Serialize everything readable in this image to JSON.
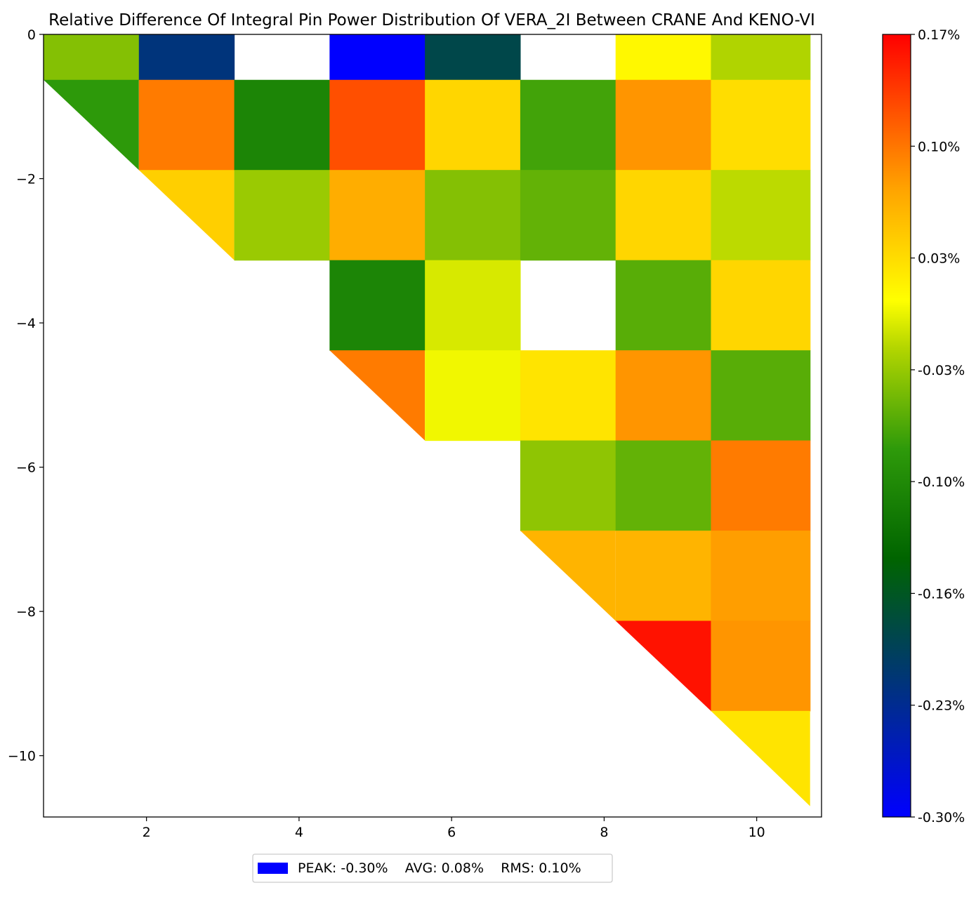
{
  "chart_data": {
    "type": "heatmap",
    "title": "Relative Difference Of Integral Pin Power Distribution Of VERA_2I Between CRANE And KENO-VI",
    "xlabel": "",
    "ylabel": "",
    "xlim": [
      0.65,
      10.85
    ],
    "ylim": [
      -10.85,
      0.0
    ],
    "x_ticks": [
      2,
      4,
      6,
      8,
      10
    ],
    "y_ticks": [
      0,
      -2,
      -4,
      -6,
      -8,
      -10
    ],
    "x_tick_labels": [
      "2",
      "4",
      "6",
      "8",
      "10"
    ],
    "y_tick_labels": [
      "0",
      "−2",
      "−4",
      "−6",
      "−8",
      "−10"
    ],
    "grid": false,
    "column_edges": [
      0.65,
      1.9,
      3.15,
      4.4,
      5.65,
      6.9,
      8.15,
      9.4,
      10.7
    ],
    "row_edges": [
      0.0,
      -0.63,
      -1.88,
      -3.13,
      -4.38,
      -5.63,
      -6.88,
      -8.13,
      -9.38,
      -10.7
    ],
    "cells": [
      {
        "row": 0,
        "col": 1,
        "value": -0.04
      },
      {
        "row": 0,
        "col": 2,
        "value": -0.22
      },
      {
        "row": 0,
        "col": 3,
        "value": null
      },
      {
        "row": 0,
        "col": 4,
        "value": -0.3
      },
      {
        "row": 0,
        "col": 5,
        "value": -0.19
      },
      {
        "row": 0,
        "col": 6,
        "value": null
      },
      {
        "row": 0,
        "col": 7,
        "value": 0.015
      },
      {
        "row": 0,
        "col": 8,
        "value": -0.02
      },
      {
        "row": 1,
        "col": 1,
        "value": -0.08,
        "shape": "tri"
      },
      {
        "row": 1,
        "col": 2,
        "value": 0.1
      },
      {
        "row": 1,
        "col": 3,
        "value": -0.105
      },
      {
        "row": 1,
        "col": 4,
        "value": 0.125
      },
      {
        "row": 1,
        "col": 5,
        "value": 0.04
      },
      {
        "row": 1,
        "col": 6,
        "value": -0.07
      },
      {
        "row": 1,
        "col": 7,
        "value": 0.085
      },
      {
        "row": 1,
        "col": 8,
        "value": 0.035
      },
      {
        "row": 2,
        "col": 2,
        "value": 0.045,
        "shape": "tri"
      },
      {
        "row": 2,
        "col": 3,
        "value": -0.03
      },
      {
        "row": 2,
        "col": 4,
        "value": 0.07
      },
      {
        "row": 2,
        "col": 5,
        "value": -0.04
      },
      {
        "row": 2,
        "col": 6,
        "value": -0.055
      },
      {
        "row": 2,
        "col": 7,
        "value": 0.04
      },
      {
        "row": 2,
        "col": 8,
        "value": -0.015
      },
      {
        "row": 3,
        "col": 4,
        "value": -0.105
      },
      {
        "row": 3,
        "col": 5,
        "value": -0.005
      },
      {
        "row": 3,
        "col": 6,
        "value": null
      },
      {
        "row": 3,
        "col": 7,
        "value": -0.06
      },
      {
        "row": 3,
        "col": 8,
        "value": 0.04
      },
      {
        "row": 4,
        "col": 4,
        "value": 0.1,
        "shape": "tri"
      },
      {
        "row": 4,
        "col": 5,
        "value": 0.005
      },
      {
        "row": 4,
        "col": 6,
        "value": 0.03
      },
      {
        "row": 4,
        "col": 7,
        "value": 0.085
      },
      {
        "row": 4,
        "col": 8,
        "value": -0.06
      },
      {
        "row": 5,
        "col": 6,
        "value": -0.035
      },
      {
        "row": 5,
        "col": 7,
        "value": -0.055
      },
      {
        "row": 5,
        "col": 8,
        "value": 0.1
      },
      {
        "row": 6,
        "col": 6,
        "value": 0.065,
        "shape": "tri"
      },
      {
        "row": 6,
        "col": 7,
        "value": 0.065
      },
      {
        "row": 6,
        "col": 8,
        "value": 0.08
      },
      {
        "row": 7,
        "col": 7,
        "value": 0.16,
        "shape": "tri"
      },
      {
        "row": 7,
        "col": 8,
        "value": 0.085
      },
      {
        "row": 8,
        "col": 8,
        "value": 0.03,
        "shape": "tri"
      }
    ],
    "colorbar": {
      "min": -0.3,
      "max": 0.17,
      "tick_values": [
        0.17,
        0.1,
        0.03,
        -0.03,
        -0.1,
        -0.16,
        -0.23,
        -0.3
      ],
      "tick_labels": [
        "0.17%",
        "0.10%",
        "0.03%",
        "-0.03%",
        "-0.10%",
        "-0.16%",
        "-0.23%",
        "-0.30%"
      ],
      "colors": [
        {
          "pos": 0.0,
          "color": "#0000ff"
        },
        {
          "pos": 0.33,
          "color": "#006400"
        },
        {
          "pos": 0.47,
          "color": "#2e9a0a"
        },
        {
          "pos": 0.6,
          "color": "#b4d600"
        },
        {
          "pos": 0.66,
          "color": "#ffff00"
        },
        {
          "pos": 0.8,
          "color": "#ffa500"
        },
        {
          "pos": 1.0,
          "color": "#ff0000"
        }
      ]
    },
    "legend": {
      "placement": "bottom-center",
      "swatch_color": "#0000ff",
      "text": "PEAK: -0.30%    AVG: 0.08%    RMS: 0.10%"
    }
  }
}
